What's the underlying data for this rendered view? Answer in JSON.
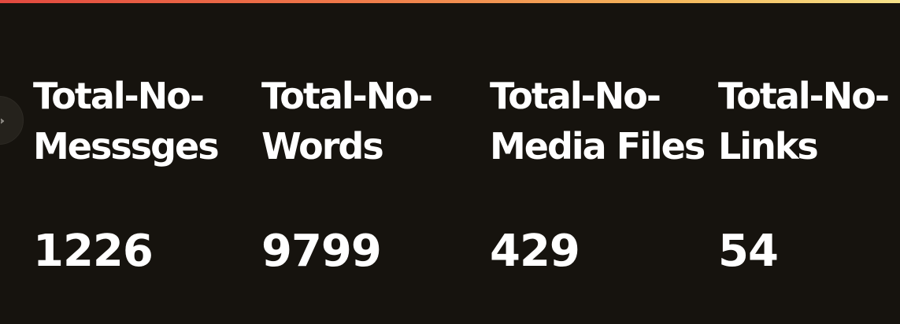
{
  "colors": {
    "background": "#16130e",
    "text": "#ffffff",
    "accent_gradient": [
      "#e2493f",
      "#f07b4a",
      "#f5b85c",
      "#f7e38a"
    ]
  },
  "sidebar": {
    "toggle_icon": "chevron-right-icon"
  },
  "metrics": [
    {
      "label": "Total-No-\nMesssges",
      "value": "1226"
    },
    {
      "label": "Total-No-\nWords",
      "value": "9799"
    },
    {
      "label": "Total-No-\nMedia Files",
      "value": "429"
    },
    {
      "label": "Total-No-\nLinks",
      "value": "54"
    }
  ]
}
